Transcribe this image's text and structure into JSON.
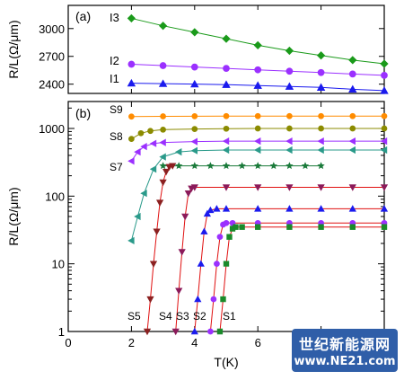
{
  "chart_data": [
    {
      "panel": "(a)",
      "type": "scatter",
      "xlabel": "",
      "ylabel": "R/L(Ω/μm)",
      "xlim": [
        0,
        10
      ],
      "ylim": [
        2300,
        3250
      ],
      "yticks": [
        2400,
        2700,
        3000
      ],
      "series": [
        {
          "name": "I3",
          "color": "#1a9a1a",
          "marker": "diamond",
          "x": [
            2.0,
            3.0,
            4.0,
            5.0,
            6.0,
            7.0,
            8.0,
            9.0,
            10.0
          ],
          "y": [
            3110,
            3030,
            2960,
            2890,
            2820,
            2760,
            2710,
            2660,
            2620
          ]
        },
        {
          "name": "I2",
          "color": "#9b30ff",
          "marker": "circle",
          "x": [
            2.0,
            3.0,
            4.0,
            5.0,
            6.0,
            7.0,
            8.0,
            9.0,
            10.0
          ],
          "y": [
            2615,
            2600,
            2585,
            2570,
            2555,
            2540,
            2525,
            2510,
            2495
          ]
        },
        {
          "name": "I1",
          "color": "#1a1aee",
          "marker": "triangle",
          "x": [
            2.0,
            3.0,
            4.0,
            5.0,
            6.0,
            7.0,
            8.0,
            9.0,
            10.0
          ],
          "y": [
            2410,
            2405,
            2400,
            2395,
            2385,
            2375,
            2365,
            2345,
            2330
          ]
        }
      ]
    },
    {
      "panel": "(b)",
      "type": "scatter",
      "xlabel": "T(K)",
      "ylabel": "R/L(Ω/μm)",
      "xlim": [
        0,
        10
      ],
      "ylim": [
        1,
        2500
      ],
      "yscale": "log",
      "xticks": [
        0,
        2,
        4,
        6,
        8
      ],
      "yticks": [
        1,
        10,
        100,
        1000
      ],
      "series": [
        {
          "name": "S9",
          "color": "#ff8c00",
          "marker": "circle",
          "x": [
            2.0,
            3.0,
            4.0,
            5.0,
            6.0,
            7.0,
            8.0,
            9.0,
            10.0
          ],
          "y": [
            1500,
            1510,
            1515,
            1520,
            1520,
            1520,
            1520,
            1520,
            1520
          ]
        },
        {
          "name": "",
          "color": "#8b8b00",
          "marker": "circle",
          "x": [
            2.0,
            2.3,
            2.6,
            3.0,
            4.0,
            5.0,
            6.0,
            7.0,
            8.0,
            9.0,
            10.0
          ],
          "y": [
            700,
            850,
            920,
            960,
            980,
            990,
            1000,
            1000,
            1000,
            1000,
            1000
          ]
        },
        {
          "name": "S8",
          "color": "#9b30ff",
          "marker": "triangle-left",
          "x": [
            2.0,
            2.2,
            2.4,
            2.7,
            3.0,
            4.0,
            5.0,
            6.0,
            7.0,
            8.0,
            9.0,
            10.0
          ],
          "y": [
            330,
            450,
            540,
            600,
            620,
            640,
            650,
            650,
            650,
            650,
            650,
            650
          ]
        },
        {
          "name": "",
          "color": "#2a9a8a",
          "marker": "triangle-left",
          "x": [
            2.0,
            2.2,
            2.4,
            2.7,
            3.0,
            3.5,
            4.0,
            5.0,
            6.0,
            7.0,
            8.0,
            9.0,
            10.0
          ],
          "y": [
            22,
            50,
            110,
            250,
            380,
            450,
            470,
            480,
            480,
            480,
            480,
            480,
            480
          ]
        },
        {
          "name": "S7",
          "color": "#1a7a3a",
          "marker": "star",
          "x": [
            3.0,
            3.5,
            4.0,
            4.5,
            5.0,
            5.5,
            6.0,
            6.5,
            7.0,
            7.5,
            8.0
          ],
          "y": [
            280,
            280,
            280,
            280,
            280,
            280,
            280,
            280,
            280,
            280,
            280
          ]
        },
        {
          "name": "S5",
          "color": "#8b2020",
          "marker": "triangle-down",
          "x": [
            2.5,
            2.6,
            2.7,
            2.8,
            2.9,
            3.0,
            3.1,
            3.2,
            3.3
          ],
          "y": [
            1,
            3,
            10,
            30,
            80,
            160,
            230,
            270,
            280
          ]
        },
        {
          "name": "S4",
          "color": "#8b1a5a",
          "marker": "triangle-down",
          "x": [
            3.4,
            3.5,
            3.6,
            3.7,
            3.8,
            3.9,
            4.0,
            5.0,
            6.0,
            7.0,
            8.0,
            9.0,
            10.0
          ],
          "y": [
            1,
            4,
            15,
            50,
            110,
            130,
            135,
            135,
            135,
            135,
            135,
            135,
            135
          ]
        },
        {
          "name": "S3",
          "color": "#1a1aee",
          "marker": "triangle",
          "x": [
            4.0,
            4.1,
            4.2,
            4.3,
            4.4,
            4.5,
            4.7,
            5.0,
            6.0,
            7.0,
            8.0,
            9.0,
            10.0
          ],
          "y": [
            1,
            3,
            10,
            30,
            55,
            62,
            65,
            65,
            65,
            65,
            65,
            65,
            65
          ]
        },
        {
          "name": "S2",
          "color": "#9b30ff",
          "marker": "circle",
          "x": [
            4.5,
            4.6,
            4.7,
            4.8,
            4.9,
            5.0,
            5.2,
            6.0,
            7.0,
            8.0,
            9.0,
            10.0
          ],
          "y": [
            1,
            3,
            10,
            25,
            38,
            40,
            40,
            40,
            40,
            40,
            40,
            40
          ]
        },
        {
          "name": "S1",
          "color": "#1a8a2a",
          "marker": "square",
          "x": [
            4.8,
            4.9,
            5.0,
            5.1,
            5.2,
            5.3,
            5.5,
            6.0,
            7.0,
            8.0,
            9.0,
            10.0
          ],
          "y": [
            1,
            3,
            10,
            25,
            33,
            35,
            35,
            35,
            35,
            35,
            35,
            35
          ]
        }
      ]
    }
  ],
  "watermark": {
    "line1": "世纪新能源网",
    "line2": "www.NE21.com"
  }
}
